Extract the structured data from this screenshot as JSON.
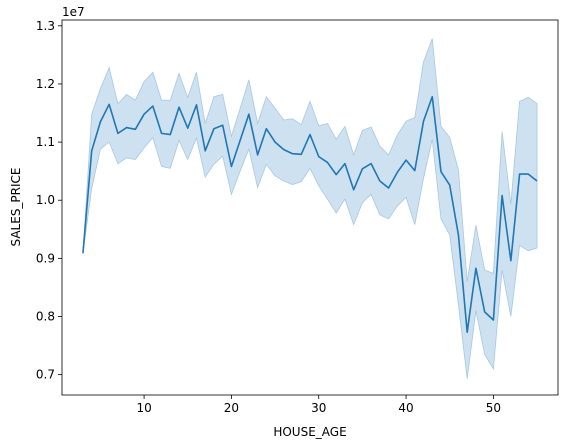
{
  "chart_data": {
    "type": "line",
    "title": "",
    "xlabel": "HOUSE_AGE",
    "ylabel": "SALES_PRICE",
    "y_offset_label": "1e7",
    "xlim": [
      0.6,
      57.4
    ],
    "ylim": [
      0.665,
      1.31
    ],
    "y_scale_factor": 10000000,
    "xticks": [
      10,
      20,
      30,
      40,
      50
    ],
    "yticks": [
      0.7,
      0.8,
      0.9,
      1.0,
      1.1,
      1.2,
      1.3
    ],
    "xtick_labels": [
      "10",
      "20",
      "30",
      "40",
      "50"
    ],
    "ytick_labels": [
      "0.7",
      "0.8",
      "0.9",
      "1.0",
      "1.1",
      "1.2",
      "1.3"
    ],
    "grid": false,
    "line_color": "#1f77b4",
    "band_color": "#a6c8e3",
    "series": [
      {
        "x": [
          3,
          4,
          5,
          6,
          7,
          8,
          9,
          10,
          11,
          12,
          13,
          14,
          15,
          16,
          17,
          18,
          19,
          20,
          21,
          22,
          23,
          24,
          25,
          26,
          27,
          28,
          29,
          30,
          31,
          32,
          33,
          34,
          35,
          36,
          37,
          38,
          39,
          40,
          41,
          42,
          43,
          44,
          45,
          46,
          47,
          48,
          49,
          50,
          51,
          52,
          53,
          54,
          55
        ],
        "values": [
          0.909,
          1.085,
          1.135,
          1.165,
          1.115,
          1.125,
          1.122,
          1.148,
          1.162,
          1.115,
          1.113,
          1.16,
          1.124,
          1.164,
          1.085,
          1.123,
          1.129,
          1.058,
          1.103,
          1.148,
          1.078,
          1.123,
          1.1,
          1.087,
          1.08,
          1.079,
          1.113,
          1.075,
          1.065,
          1.044,
          1.063,
          1.018,
          1.054,
          1.063,
          1.033,
          1.021,
          1.048,
          1.069,
          1.051,
          1.136,
          1.178,
          1.049,
          1.026,
          0.94,
          0.773,
          0.883,
          0.808,
          0.794,
          1.008,
          0.896,
          1.045,
          1.045,
          1.033
        ],
        "ci_lower": [
          0.909,
          1.02,
          1.088,
          1.1,
          1.063,
          1.073,
          1.07,
          1.09,
          1.108,
          1.058,
          1.055,
          1.103,
          1.07,
          1.107,
          1.04,
          1.062,
          1.076,
          1.01,
          1.05,
          1.088,
          1.022,
          1.062,
          1.042,
          1.033,
          1.027,
          1.032,
          1.055,
          1.025,
          1.002,
          0.978,
          1.002,
          0.958,
          0.996,
          1.01,
          0.975,
          0.968,
          0.99,
          1.005,
          0.958,
          1.038,
          1.105,
          0.968,
          0.94,
          0.82,
          0.693,
          0.81,
          0.735,
          0.71,
          0.88,
          0.8,
          0.922,
          0.913,
          0.918
        ],
        "ci_upper": [
          0.909,
          1.148,
          1.192,
          1.228,
          1.166,
          1.182,
          1.172,
          1.204,
          1.22,
          1.172,
          1.172,
          1.218,
          1.177,
          1.22,
          1.132,
          1.178,
          1.182,
          1.11,
          1.158,
          1.207,
          1.132,
          1.178,
          1.158,
          1.138,
          1.14,
          1.13,
          1.17,
          1.128,
          1.132,
          1.105,
          1.127,
          1.078,
          1.12,
          1.126,
          1.093,
          1.078,
          1.112,
          1.136,
          1.142,
          1.238,
          1.278,
          1.127,
          1.108,
          1.052,
          0.86,
          0.957,
          0.88,
          0.874,
          1.118,
          0.993,
          1.17,
          1.177,
          1.166
        ]
      }
    ]
  }
}
